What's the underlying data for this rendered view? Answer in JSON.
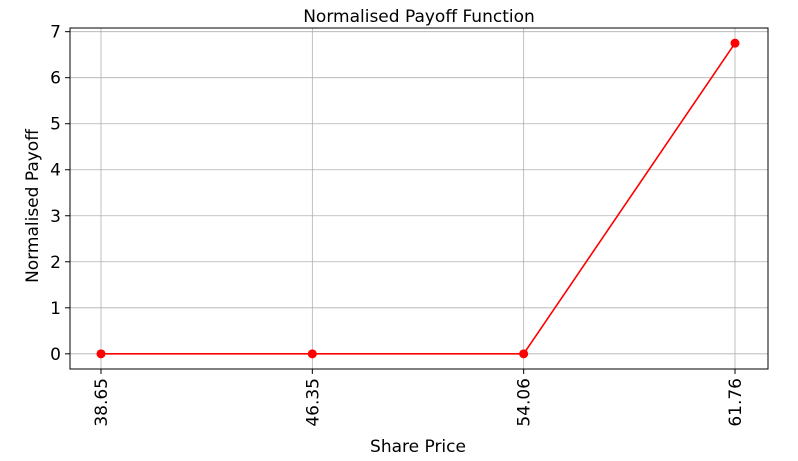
{
  "chart_data": {
    "type": "line",
    "title": "Normalised Payoff Function",
    "xlabel": "Share Price",
    "ylabel": "Normalised Payoff",
    "x": [
      "38.65",
      "46.35",
      "54.06",
      "61.76"
    ],
    "series": [
      {
        "values": [
          0,
          0,
          0,
          6.75
        ],
        "color": "#ff0000",
        "marker": "circle"
      }
    ],
    "ylim": [
      -0.33,
      7.08
    ],
    "yticks": [
      "0",
      "1",
      "2",
      "3",
      "4",
      "5",
      "6",
      "7"
    ],
    "grid": true,
    "x_tick_rotation": "vertical"
  }
}
